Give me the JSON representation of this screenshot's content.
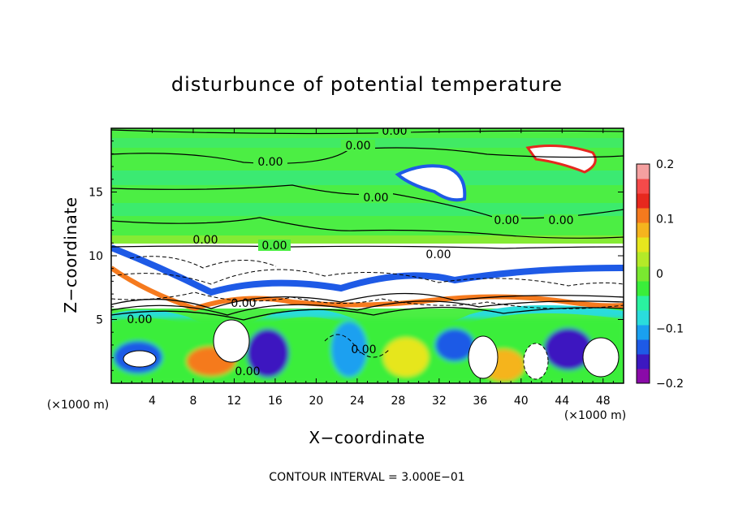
{
  "chart_data": {
    "type": "heatmap",
    "title": "disturbunce of potential temperature",
    "xlabel": "X−coordinate",
    "ylabel": "Z−coordinate",
    "x_unit": "(×1000 m)",
    "y_unit": "(×1000 m)",
    "xlim": [
      0,
      50
    ],
    "ylim": [
      0,
      20
    ],
    "x_ticks": [
      4,
      8,
      12,
      16,
      20,
      24,
      28,
      32,
      36,
      40,
      44,
      48
    ],
    "x_tick_labels": [
      "4",
      "8",
      "12",
      "16",
      "20",
      "24",
      "28",
      "32",
      "36",
      "40",
      "44",
      "48"
    ],
    "y_ticks": [
      5,
      10,
      15
    ],
    "y_tick_labels": [
      "5",
      "10",
      "15"
    ],
    "colorbar": {
      "range": [
        -0.2,
        0.2
      ],
      "ticks": [
        0.2,
        0.1,
        0,
        -0.1,
        -0.2
      ],
      "tick_labels": [
        "0.2",
        "0.1",
        "0",
        "−0.1",
        "−0.2"
      ],
      "colors": [
        "#8a0aa8",
        "#3c18c0",
        "#1e5ae6",
        "#1aa0f0",
        "#2adcdc",
        "#2af2a0",
        "#3aee3a",
        "#7ae830",
        "#b4ea28",
        "#e6e61e",
        "#f5b41e",
        "#f57a1e",
        "#e6281e",
        "#f54a4a",
        "#f5a0a0"
      ]
    },
    "contour_labels": [
      "0.00",
      "0.00",
      "0.00",
      "0.00",
      "0.00",
      "0.00",
      "0.00",
      "0.00",
      "0.00",
      "0.00",
      "0.00",
      "0.00",
      "0.00"
    ],
    "contour_interval": "CONTOUR INTERVAL = 3.000E−01"
  }
}
